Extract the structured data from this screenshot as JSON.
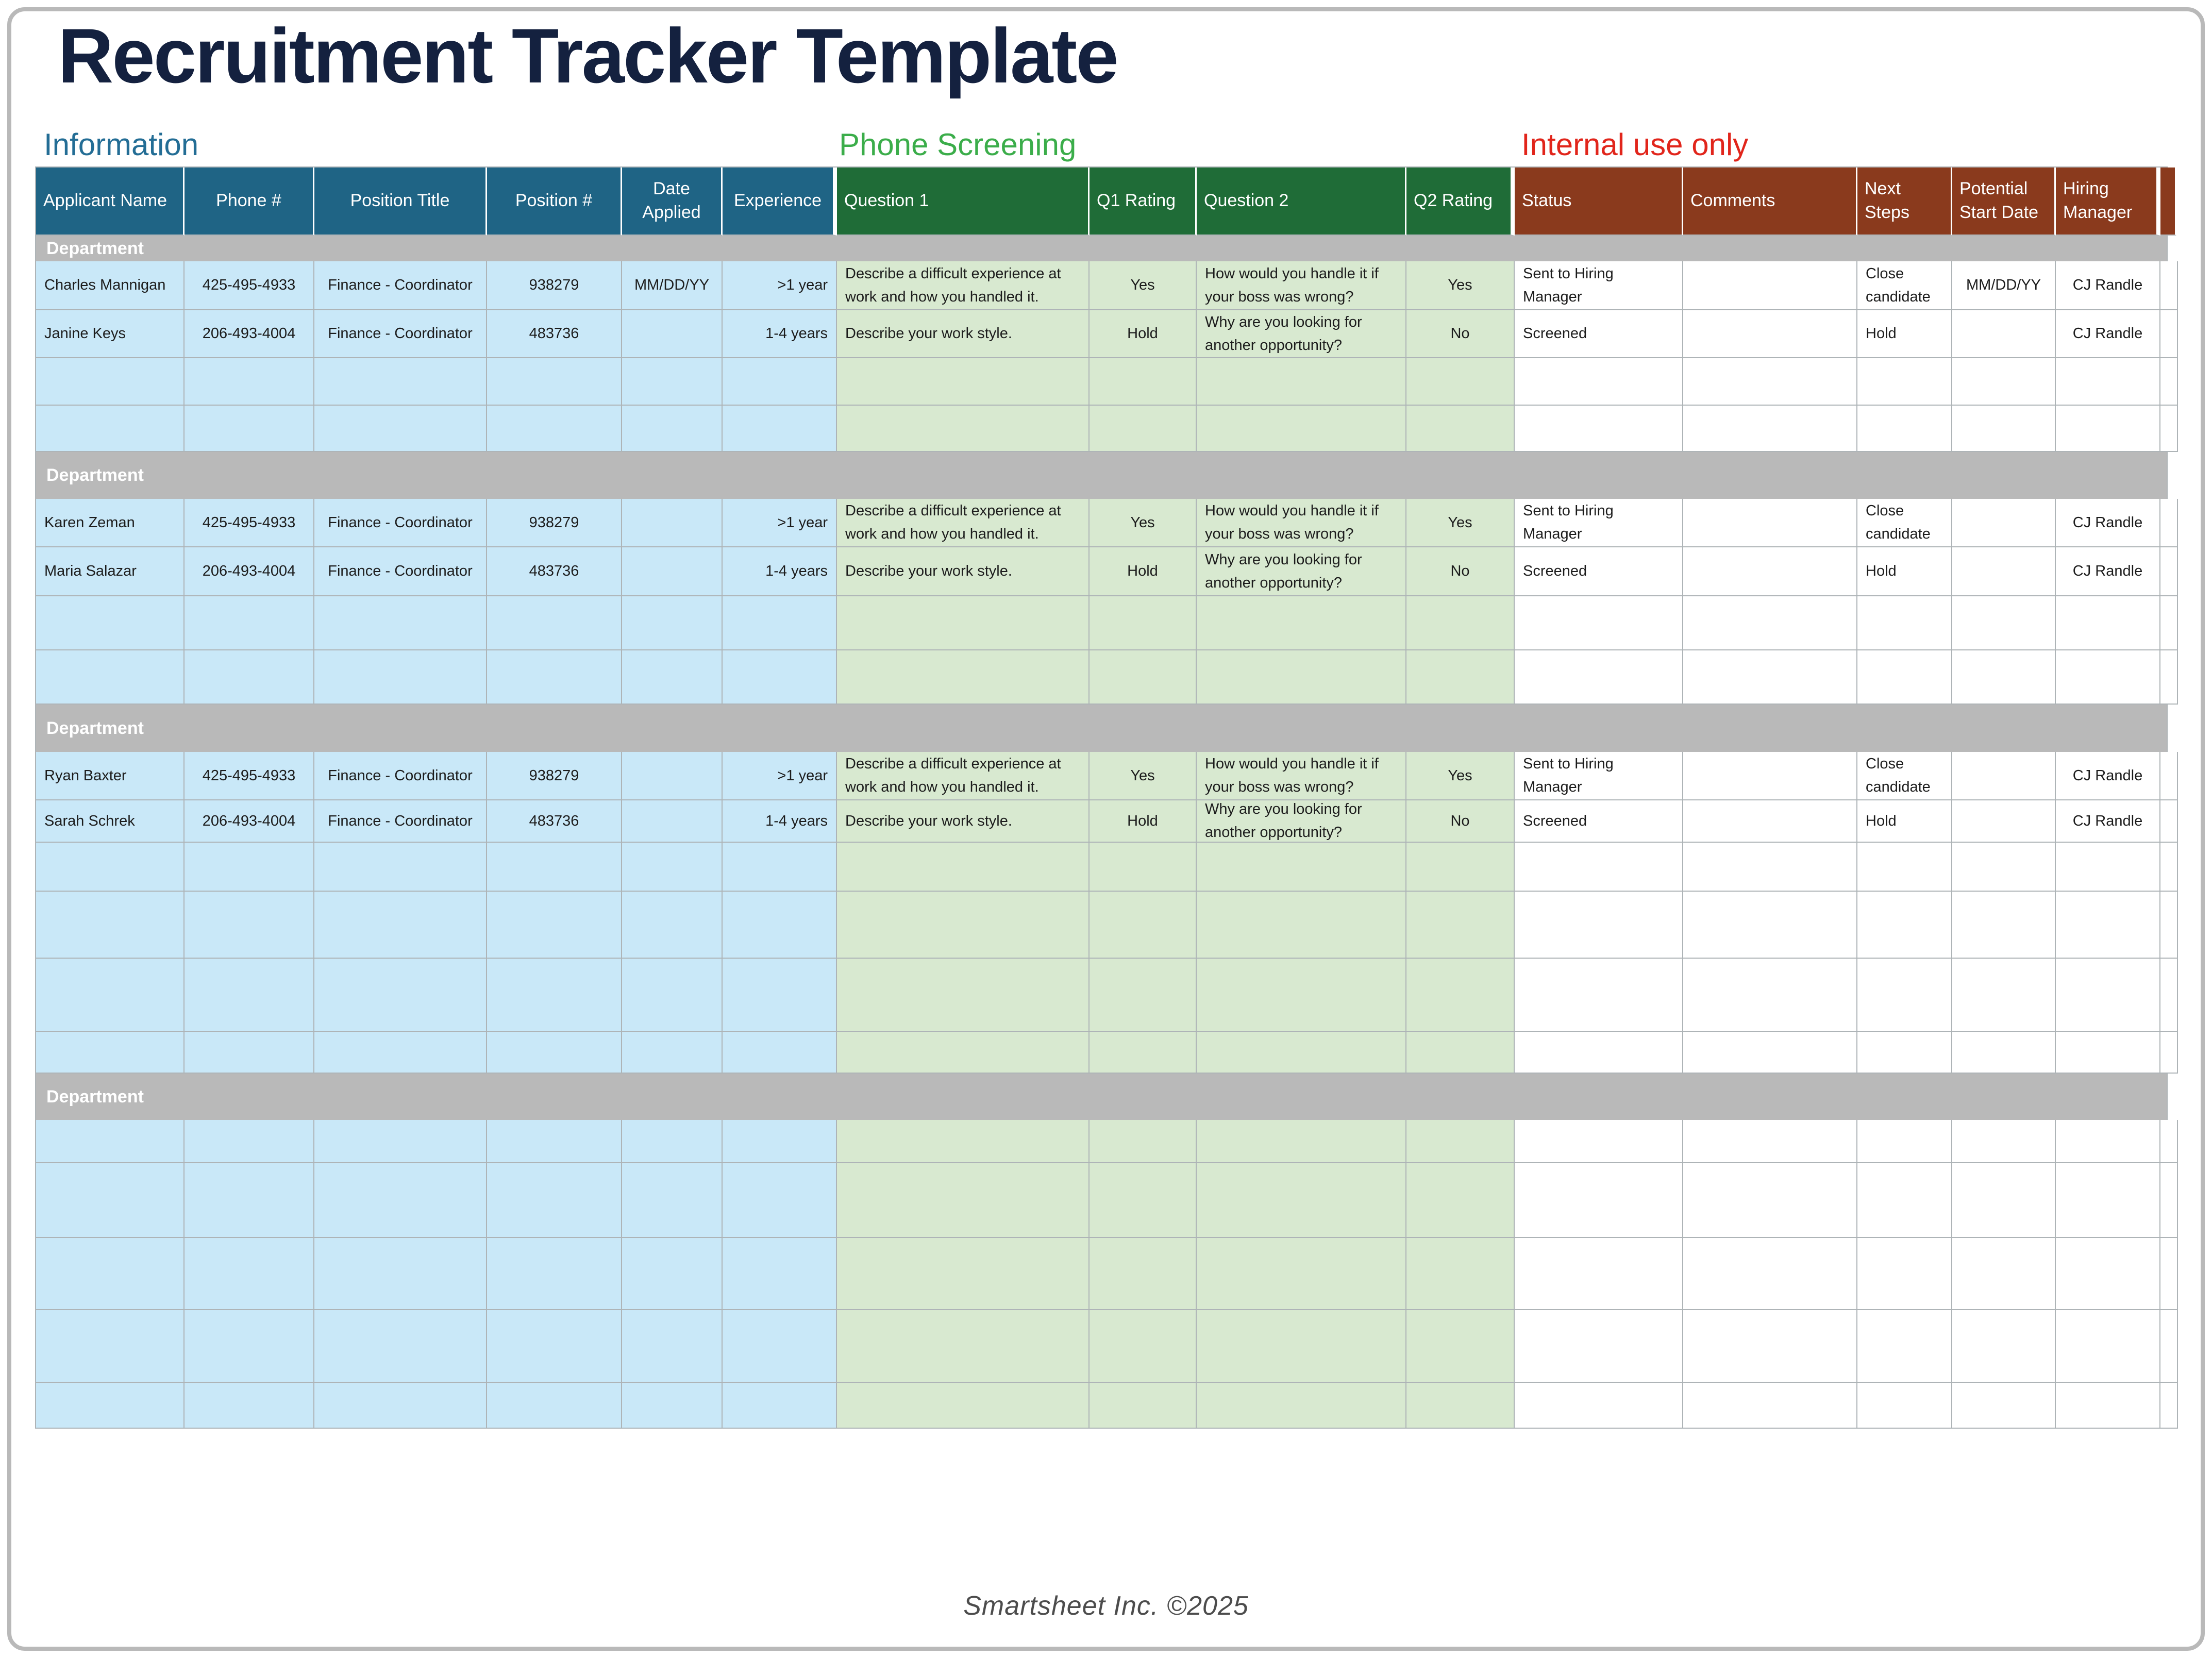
{
  "page": {
    "title": "Recruitment Tracker Template",
    "footer": "Smartsheet Inc. ©2025"
  },
  "section_labels": [
    {
      "label": "Information",
      "color": "#236d95"
    },
    {
      "label": "Phone Screening",
      "color": "#3bad4a"
    },
    {
      "label": "Internal use only",
      "color": "#e1251b"
    }
  ],
  "colors": {
    "title": "#14213f",
    "header_information": "#1f6485",
    "header_phone_screening": "#1f6c37",
    "header_internal": "#8a3a1d",
    "cell_information": "#c9e8f8",
    "cell_phone_screening": "#d8e9d0",
    "department_band": "#b9b9b9",
    "grid": "#aeb4b7"
  },
  "table": {
    "headers": [
      "Applicant Name",
      "Phone #",
      "Position Title",
      "Position #",
      "Date Applied",
      "Experience",
      "Question 1",
      "Q1 Rating",
      "Question 2",
      "Q2 Rating",
      "Status",
      "Comments",
      "Next Steps",
      "Potential Start Date",
      "Hiring Manager",
      ""
    ],
    "band_label": "Department",
    "sections": [
      {
        "rows": [
          [
            "Charles Mannigan",
            "425-495-4933",
            "Finance - Coordinator",
            "938279",
            "MM/DD/YY",
            ">1 year",
            "Describe a difficult experience at work and how you handled it.",
            "Yes",
            "How would you handle it if your boss was wrong?",
            "Yes",
            "Sent to Hiring Manager",
            "",
            "Close candidate",
            "MM/DD/YY",
            "CJ Randle",
            ""
          ],
          [
            "Janine Keys",
            "206-493-4004",
            "Finance - Coordinator",
            "483736",
            "",
            "1-4 years",
            "Describe your work style.",
            "Hold",
            "Why are you looking for another opportunity?",
            "No",
            "Screened",
            "",
            "Hold",
            "",
            "CJ Randle",
            ""
          ]
        ]
      },
      {
        "rows": [
          [
            "Karen Zeman",
            "425-495-4933",
            "Finance - Coordinator",
            "938279",
            "",
            ">1 year",
            "Describe a difficult experience at work and how you handled it.",
            "Yes",
            "How would you handle it if your boss was wrong?",
            "Yes",
            "Sent to Hiring Manager",
            "",
            "Close candidate",
            "",
            "CJ Randle",
            ""
          ],
          [
            "Maria Salazar",
            "206-493-4004",
            "Finance - Coordinator",
            "483736",
            "",
            "1-4 years",
            "Describe your work style.",
            "Hold",
            "Why are you looking for another opportunity?",
            "No",
            "Screened",
            "",
            "Hold",
            "",
            "CJ Randle",
            ""
          ]
        ]
      },
      {
        "rows": [
          [
            "Ryan Baxter",
            "425-495-4933",
            "Finance - Coordinator",
            "938279",
            "",
            ">1 year",
            "Describe a difficult experience at work and how you handled it.",
            "Yes",
            "How would you handle it if your boss was wrong?",
            "Yes",
            "Sent to Hiring Manager",
            "",
            "Close candidate",
            "",
            "CJ Randle",
            ""
          ],
          [
            "Sarah Schrek",
            "206-493-4004",
            "Finance - Coordinator",
            "483736",
            "",
            "1-4 years",
            "Describe your work style.",
            "Hold",
            "Why are you looking for another opportunity?",
            "No",
            "Screened",
            "",
            "Hold",
            "",
            "CJ Randle",
            ""
          ]
        ]
      },
      {
        "rows": []
      }
    ]
  }
}
